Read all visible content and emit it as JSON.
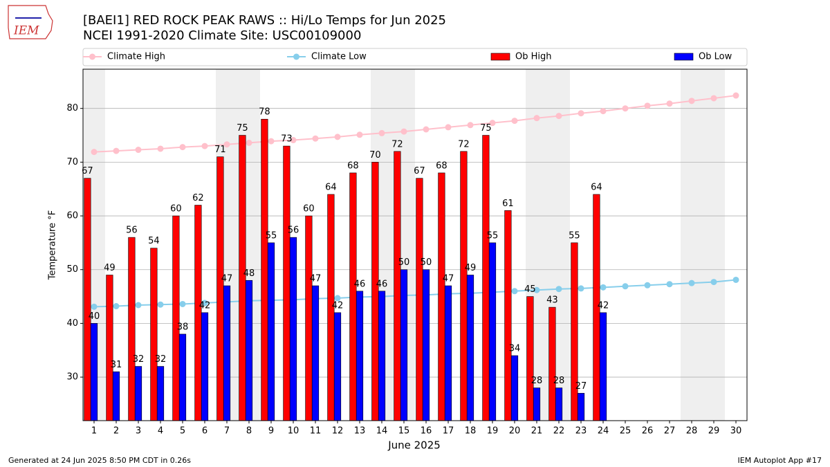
{
  "chart_data": {
    "type": "bar",
    "title": "[BAEI1] RED ROCK PEAK RAWS :: Hi/Lo Temps for Jun 2025",
    "subtitle": "NCEI 1991-2020 Climate Site: USC00109000",
    "logo_text": "IEM",
    "x_label": "June 2025",
    "y_label": "Temperature °F",
    "footer_left": "Generated at 24 Jun 2025 8:50 PM CDT in 0.26s",
    "footer_right": "IEM Autoplot App #17",
    "x": [
      1,
      2,
      3,
      4,
      5,
      6,
      7,
      8,
      9,
      10,
      11,
      12,
      13,
      14,
      15,
      16,
      17,
      18,
      19,
      20,
      21,
      22,
      23,
      24,
      25,
      26,
      27,
      28,
      29,
      30
    ],
    "xlim": [
      0.5,
      30.5
    ],
    "xticks": [
      1,
      2,
      3,
      4,
      5,
      6,
      7,
      8,
      9,
      10,
      11,
      12,
      13,
      14,
      15,
      16,
      17,
      18,
      19,
      20,
      21,
      22,
      23,
      24,
      25,
      26,
      27,
      28,
      29,
      30
    ],
    "ylim": [
      21.9,
      87.3
    ],
    "yticks": [
      30,
      40,
      50,
      60,
      70,
      80
    ],
    "grid": true,
    "legend": "top",
    "shaded_days": [
      1,
      7,
      8,
      14,
      15,
      21,
      22,
      28,
      29
    ],
    "shade_color": "#efefef",
    "series": [
      {
        "name": "Climate High",
        "type": "line",
        "color": "#ffc0cb",
        "values": [
          71.9,
          72.1,
          72.3,
          72.5,
          72.8,
          73.0,
          73.3,
          73.6,
          73.9,
          74.1,
          74.4,
          74.7,
          75.1,
          75.4,
          75.7,
          76.1,
          76.5,
          76.9,
          77.3,
          77.7,
          78.2,
          78.6,
          79.1,
          79.5,
          80.0,
          80.5,
          80.9,
          81.4,
          81.9,
          82.4
        ]
      },
      {
        "name": "Climate Low",
        "type": "line",
        "color": "#87ceeb",
        "values": [
          43.1,
          43.2,
          43.4,
          43.5,
          43.6,
          43.8,
          44.0,
          44.2,
          44.3,
          44.4,
          44.6,
          44.7,
          44.9,
          45.0,
          45.2,
          45.3,
          45.5,
          45.6,
          45.8,
          46.0,
          46.2,
          46.4,
          46.5,
          46.7,
          46.9,
          47.1,
          47.3,
          47.5,
          47.7,
          48.1
        ]
      },
      {
        "name": "Ob High",
        "type": "bar",
        "color": "#ff0000",
        "values": [
          67,
          49,
          56,
          54,
          60,
          62,
          71,
          75,
          78,
          73,
          60,
          64,
          68,
          70,
          72,
          67,
          68,
          72,
          75,
          61,
          45,
          43,
          55,
          64,
          null,
          null,
          null,
          null,
          null,
          null
        ]
      },
      {
        "name": "Ob Low",
        "type": "bar",
        "color": "#0000ff",
        "values": [
          40,
          31,
          32,
          32,
          38,
          42,
          47,
          48,
          55,
          56,
          47,
          42,
          46,
          46,
          50,
          50,
          47,
          49,
          55,
          34,
          28,
          28,
          27,
          42,
          null,
          null,
          null,
          null,
          null,
          null
        ]
      }
    ]
  }
}
